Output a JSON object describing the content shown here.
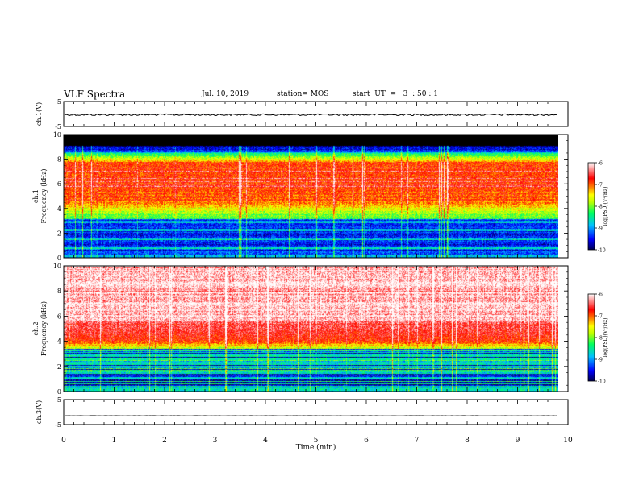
{
  "header": {
    "title": "VLF Spectra",
    "date": "Jul. 10, 2019",
    "station": "station= MOS",
    "start": "start  UT  =   3  : 50 : 1"
  },
  "chart_data": [
    {
      "type": "line",
      "name": "ch1-waveform",
      "ylabel": "ch.1(V)",
      "ylim": [
        -5,
        5
      ],
      "ytick_labels": [
        "5",
        "-5"
      ],
      "xlim": [
        0,
        10
      ],
      "level": -0.3
    },
    {
      "type": "heatmap",
      "name": "ch1-spectrogram",
      "ylabel_lines": [
        "ch.1",
        "Frequency  (kHz)"
      ],
      "ylim": [
        0,
        10
      ],
      "ytick_labels": [
        "0",
        "2",
        "4",
        "6",
        "8",
        "10"
      ],
      "xlim": [
        0,
        10
      ],
      "data_end_min": 9.8,
      "colorbar": {
        "label": "log(PSD)(V²/Hz)",
        "range": [
          -10,
          -6
        ],
        "tick_labels": [
          "-6",
          "-7",
          "-8",
          "-9",
          "-10"
        ]
      }
    },
    {
      "type": "heatmap",
      "name": "ch2-spectrogram",
      "ylabel_lines": [
        "ch.2",
        "Frequency  (kHz)"
      ],
      "ylim": [
        0,
        10
      ],
      "ytick_labels": [
        "0",
        "2",
        "4",
        "6",
        "8",
        "10"
      ],
      "xlim": [
        0,
        10
      ],
      "data_end_min": 9.8,
      "colorbar": {
        "label": "log(PSD)(V²/Hz)",
        "range": [
          -10,
          -6
        ],
        "tick_labels": [
          "-6",
          "-7",
          "-8",
          "-9",
          "-10"
        ]
      }
    },
    {
      "type": "line",
      "name": "ch3-waveform",
      "ylabel": "ch.3(V)",
      "ylim": [
        -5,
        5
      ],
      "ytick_labels": [
        "5",
        "-5"
      ],
      "xlim": [
        0,
        10
      ],
      "level": -1.5
    }
  ],
  "xaxis": {
    "label": "Time  (min)",
    "tick_labels": [
      "0",
      "1",
      "2",
      "3",
      "4",
      "5",
      "6",
      "7",
      "8",
      "9",
      "10"
    ]
  },
  "colors": {
    "scale": [
      "#000060",
      "#0000ff",
      "#00a0ff",
      "#00e0c0",
      "#00ff00",
      "#c0ff00",
      "#ffff00",
      "#ff8000",
      "#ff0000",
      "#ffffff"
    ]
  }
}
